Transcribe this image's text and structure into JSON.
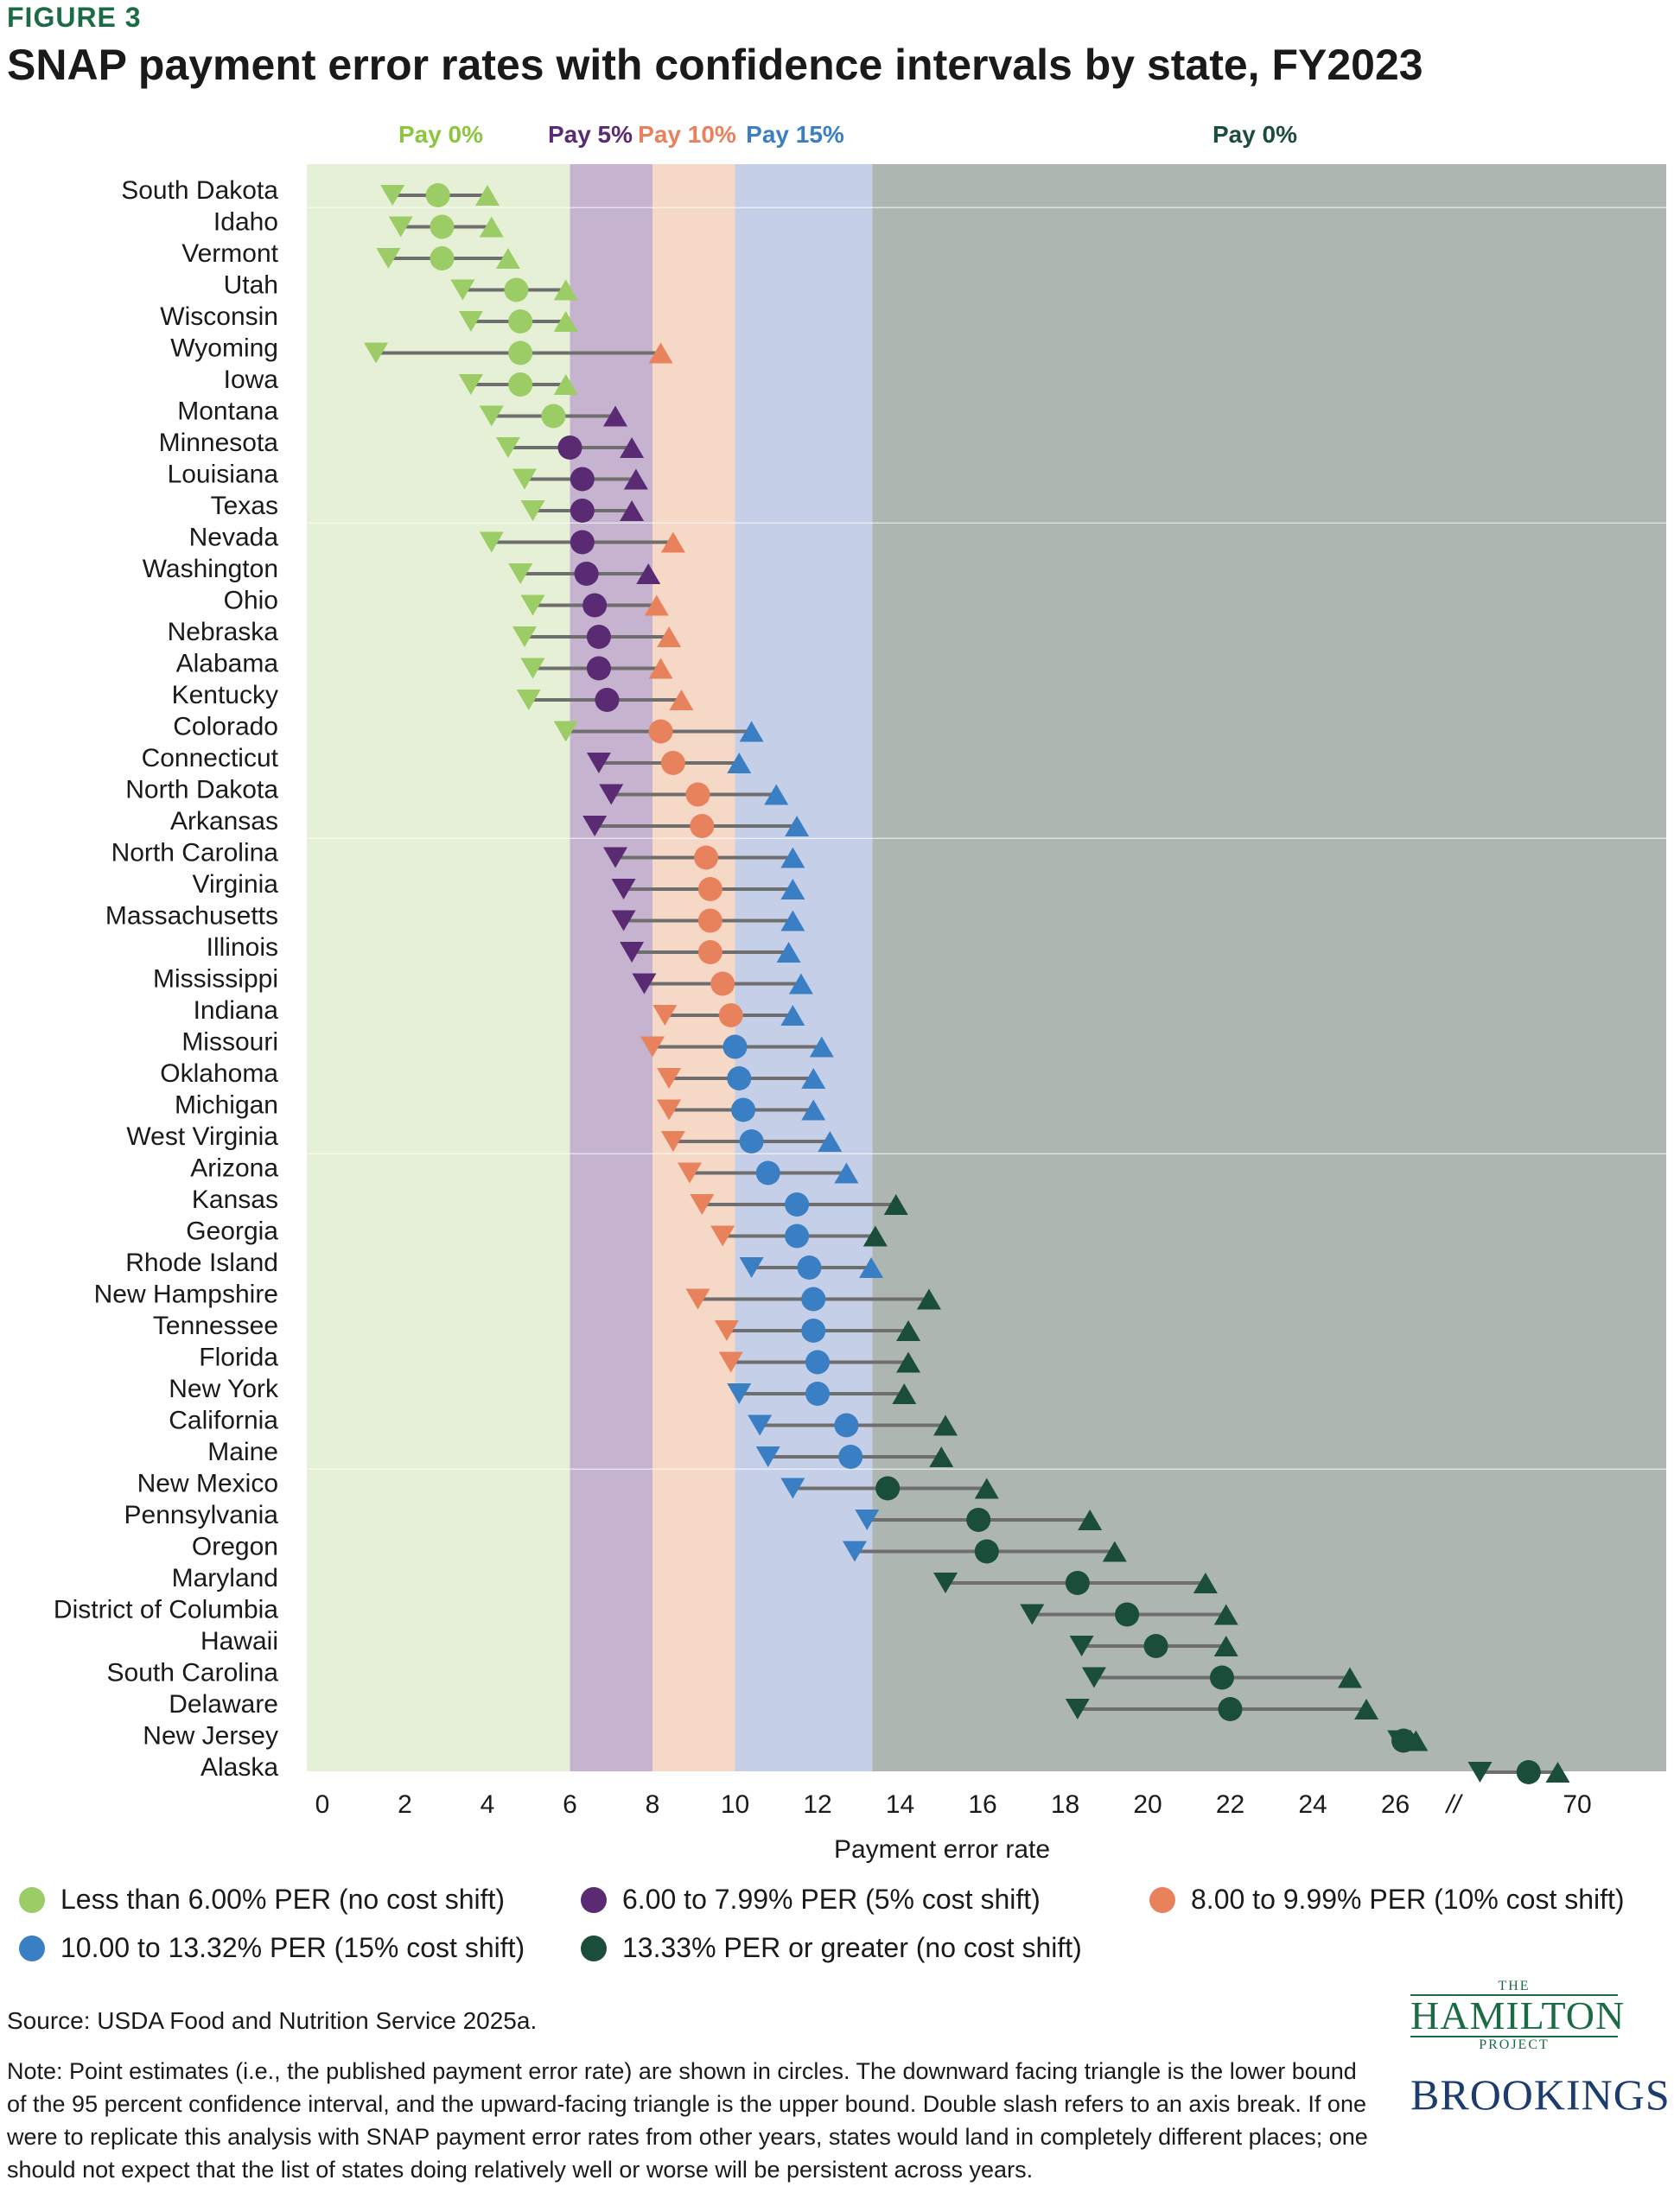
{
  "figure_label": "FIGURE 3",
  "title": "SNAP payment error rates with confidence intervals by state, FY2023",
  "chart_data": {
    "type": "dot-range",
    "xlabel": "Payment error rate",
    "x_ticks_left": [
      0,
      2,
      4,
      6,
      8,
      10,
      12,
      14,
      16,
      18,
      20,
      22,
      24,
      26
    ],
    "x_ticks_right": [
      70
    ],
    "axis_break": "//",
    "bands": [
      {
        "label": "Pay 0%",
        "from": 0,
        "to": 6,
        "color": "#e6f0d6",
        "label_color": "#8cc63f"
      },
      {
        "label": "Pay 5%",
        "from": 6,
        "to": 8,
        "color": "#c5b3cf",
        "label_color": "#5a2a73"
      },
      {
        "label": "Pay 10%",
        "from": 8,
        "to": 10,
        "color": "#f6d8c6",
        "label_color": "#e8825c"
      },
      {
        "label": "Pay 15%",
        "from": 10,
        "to": 13.33,
        "color": "#c5d0e8",
        "label_color": "#3a7fc4"
      },
      {
        "label": "Pay 0%",
        "from": 13.33,
        "to": 72,
        "color": "#aeb6b2",
        "label_color": "#1a4d3a"
      }
    ],
    "category_colors": {
      "low": "#9ccc65",
      "five": "#5a2a73",
      "ten": "#e8825c",
      "fifteen": "#3a7fc4",
      "high": "#1a4d3a"
    },
    "states": [
      {
        "name": "South Dakota",
        "lower": 1.7,
        "point": 2.8,
        "upper": 4.0
      },
      {
        "name": "Idaho",
        "lower": 1.9,
        "point": 2.9,
        "upper": 4.1
      },
      {
        "name": "Vermont",
        "lower": 1.6,
        "point": 2.9,
        "upper": 4.5
      },
      {
        "name": "Utah",
        "lower": 3.4,
        "point": 4.7,
        "upper": 5.9
      },
      {
        "name": "Wisconsin",
        "lower": 3.6,
        "point": 4.8,
        "upper": 5.9
      },
      {
        "name": "Wyoming",
        "lower": 1.3,
        "point": 4.8,
        "upper": 8.2
      },
      {
        "name": "Iowa",
        "lower": 3.6,
        "point": 4.8,
        "upper": 5.9
      },
      {
        "name": "Montana",
        "lower": 4.1,
        "point": 5.6,
        "upper": 7.1
      },
      {
        "name": "Minnesota",
        "lower": 4.5,
        "point": 6.0,
        "upper": 7.5
      },
      {
        "name": "Louisiana",
        "lower": 4.9,
        "point": 6.3,
        "upper": 7.6
      },
      {
        "name": "Texas",
        "lower": 5.1,
        "point": 6.3,
        "upper": 7.5
      },
      {
        "name": "Nevada",
        "lower": 4.1,
        "point": 6.3,
        "upper": 8.5
      },
      {
        "name": "Washington",
        "lower": 4.8,
        "point": 6.4,
        "upper": 7.9
      },
      {
        "name": "Ohio",
        "lower": 5.1,
        "point": 6.6,
        "upper": 8.1
      },
      {
        "name": "Nebraska",
        "lower": 4.9,
        "point": 6.7,
        "upper": 8.4
      },
      {
        "name": "Alabama",
        "lower": 5.1,
        "point": 6.7,
        "upper": 8.2
      },
      {
        "name": "Kentucky",
        "lower": 5.0,
        "point": 6.9,
        "upper": 8.7
      },
      {
        "name": "Colorado",
        "lower": 5.9,
        "point": 8.2,
        "upper": 10.4
      },
      {
        "name": "Connecticut",
        "lower": 6.7,
        "point": 8.5,
        "upper": 10.1
      },
      {
        "name": "North Dakota",
        "lower": 7.0,
        "point": 9.1,
        "upper": 11.0
      },
      {
        "name": "Arkansas",
        "lower": 6.6,
        "point": 9.2,
        "upper": 11.5
      },
      {
        "name": "North Carolina",
        "lower": 7.1,
        "point": 9.3,
        "upper": 11.4
      },
      {
        "name": "Virginia",
        "lower": 7.3,
        "point": 9.4,
        "upper": 11.4
      },
      {
        "name": "Massachusetts",
        "lower": 7.3,
        "point": 9.4,
        "upper": 11.4
      },
      {
        "name": "Illinois",
        "lower": 7.5,
        "point": 9.4,
        "upper": 11.3
      },
      {
        "name": "Mississippi",
        "lower": 7.8,
        "point": 9.7,
        "upper": 11.6
      },
      {
        "name": "Indiana",
        "lower": 8.3,
        "point": 9.9,
        "upper": 11.4
      },
      {
        "name": "Missouri",
        "lower": 8.0,
        "point": 10.0,
        "upper": 12.1
      },
      {
        "name": "Oklahoma",
        "lower": 8.4,
        "point": 10.1,
        "upper": 11.9
      },
      {
        "name": "Michigan",
        "lower": 8.4,
        "point": 10.2,
        "upper": 11.9
      },
      {
        "name": "West Virginia",
        "lower": 8.5,
        "point": 10.4,
        "upper": 12.3
      },
      {
        "name": "Arizona",
        "lower": 8.9,
        "point": 10.8,
        "upper": 12.7
      },
      {
        "name": "Kansas",
        "lower": 9.2,
        "point": 11.5,
        "upper": 13.9
      },
      {
        "name": "Georgia",
        "lower": 9.7,
        "point": 11.5,
        "upper": 13.4
      },
      {
        "name": "Rhode Island",
        "lower": 10.4,
        "point": 11.8,
        "upper": 13.3
      },
      {
        "name": "New Hampshire",
        "lower": 9.1,
        "point": 11.9,
        "upper": 14.7
      },
      {
        "name": "Tennessee",
        "lower": 9.8,
        "point": 11.9,
        "upper": 14.2
      },
      {
        "name": "Florida",
        "lower": 9.9,
        "point": 12.0,
        "upper": 14.2
      },
      {
        "name": "New York",
        "lower": 10.1,
        "point": 12.0,
        "upper": 14.1
      },
      {
        "name": "California",
        "lower": 10.6,
        "point": 12.7,
        "upper": 15.1
      },
      {
        "name": "Maine",
        "lower": 10.8,
        "point": 12.8,
        "upper": 15.0
      },
      {
        "name": "New Mexico",
        "lower": 11.4,
        "point": 13.7,
        "upper": 16.1
      },
      {
        "name": "Pennsylvania",
        "lower": 13.2,
        "point": 15.9,
        "upper": 18.6
      },
      {
        "name": "Oregon",
        "lower": 12.9,
        "point": 16.1,
        "upper": 19.2
      },
      {
        "name": "Maryland",
        "lower": 15.1,
        "point": 18.3,
        "upper": 21.4
      },
      {
        "name": "District of Columbia",
        "lower": 17.2,
        "point": 19.5,
        "upper": 21.9
      },
      {
        "name": "Hawaii",
        "lower": 18.4,
        "point": 20.2,
        "upper": 21.9
      },
      {
        "name": "South Carolina",
        "lower": 18.7,
        "point": 21.8,
        "upper": 24.9
      },
      {
        "name": "Delaware",
        "lower": 18.3,
        "point": 22.0,
        "upper": 25.3
      },
      {
        "name": "New Jersey",
        "lower": 26.1,
        "point": 26.2,
        "upper": 26.5
      },
      {
        "name": "Alaska",
        "lower": 65.0,
        "point": 67.5,
        "upper": 69.0
      }
    ]
  },
  "legend": [
    {
      "label": "Less than 6.00% PER (no cost shift)",
      "color": "#9ccc65"
    },
    {
      "label": "6.00 to 7.99% PER (5% cost shift)",
      "color": "#5a2a73"
    },
    {
      "label": "8.00 to 9.99% PER (10% cost shift)",
      "color": "#e8825c"
    },
    {
      "label": "10.00 to 13.32% PER (15% cost shift)",
      "color": "#3a7fc4"
    },
    {
      "label": "13.33% PER or greater (no cost shift)",
      "color": "#1a4d3a"
    }
  ],
  "source": "Source: USDA Food and Nutrition Service 2025a.",
  "note": "Note: Point estimates (i.e., the published payment error rate) are shown in circles. The downward facing triangle is the lower bound of the 95 percent confidence interval, and the upward-facing triangle is the upper bound. Double slash refers to an axis break. If one were to replicate this analysis with SNAP payment error rates from other years, states would land in completely different places; one should not expect that the list of states doing relatively well or worse will be persistent across years.",
  "logos": {
    "hamilton_the": "THE",
    "hamilton_name": "HAMILTON",
    "hamilton_project": "PROJECT",
    "brookings": "BROOKINGS"
  }
}
